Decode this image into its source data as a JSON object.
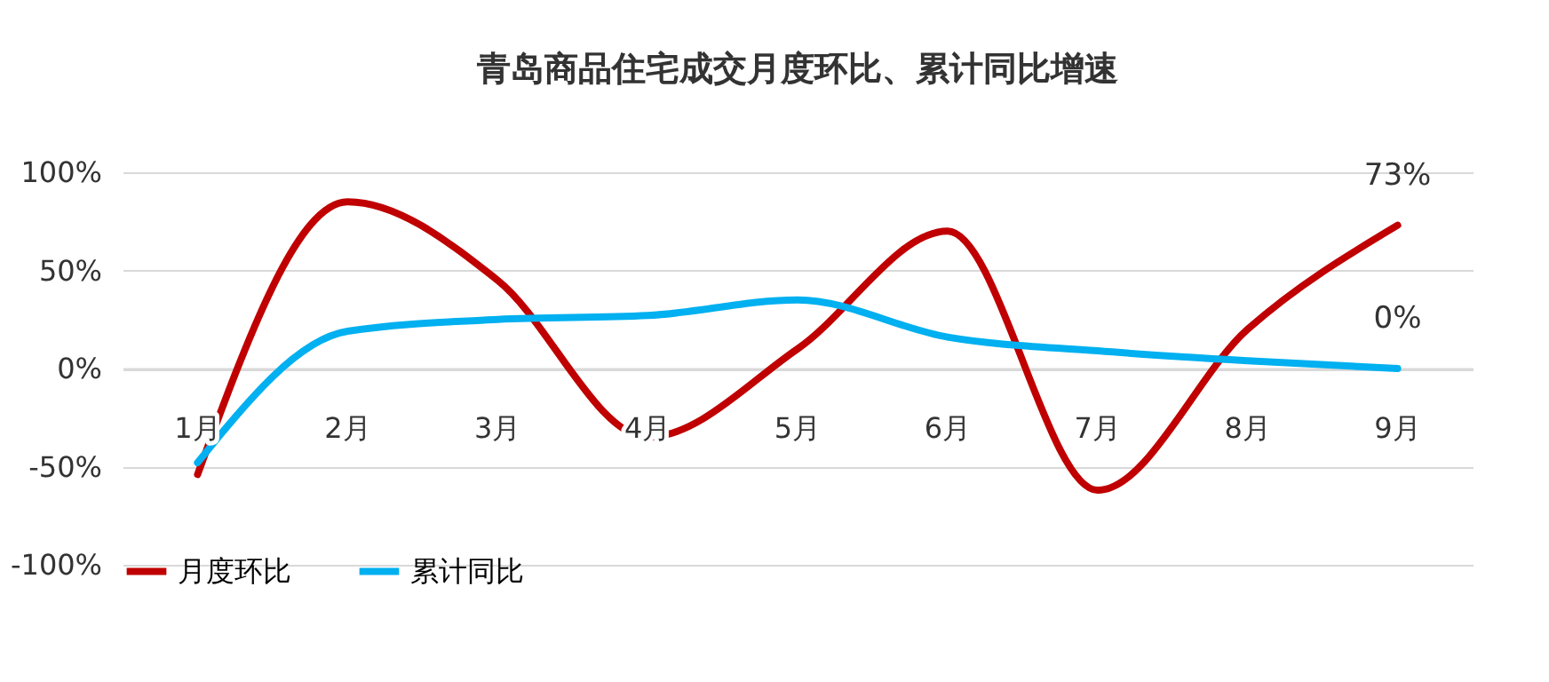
{
  "chart_data": {
    "type": "line",
    "title": "青岛商品住宅成交月度环比、累计同比增速",
    "categories": [
      "1月",
      "2月",
      "3月",
      "4月",
      "5月",
      "6月",
      "7月",
      "8月",
      "9月"
    ],
    "series": [
      {
        "name": "月度环比",
        "color": "#c00000",
        "values": [
          -54,
          85,
          45,
          -35,
          10,
          70,
          -62,
          20,
          73
        ],
        "value_labels": [
          null,
          null,
          null,
          null,
          null,
          null,
          null,
          null,
          "73%"
        ]
      },
      {
        "name": "累计同比",
        "color": "#00b0f0",
        "values": [
          -48,
          19,
          25,
          27,
          35,
          16,
          9,
          4,
          0
        ],
        "value_labels": [
          null,
          null,
          null,
          null,
          null,
          null,
          null,
          null,
          "0%"
        ]
      }
    ],
    "ylim": [
      -100,
      100
    ],
    "yticks": [
      {
        "value": -100,
        "label": "-100%"
      },
      {
        "value": -50,
        "label": "-50%"
      },
      {
        "value": 0,
        "label": "0%"
      },
      {
        "value": 50,
        "label": "50%"
      },
      {
        "value": 100,
        "label": "100%"
      }
    ],
    "grid": "y",
    "legend": "bottom",
    "marker": "none",
    "line_style": "solid"
  }
}
